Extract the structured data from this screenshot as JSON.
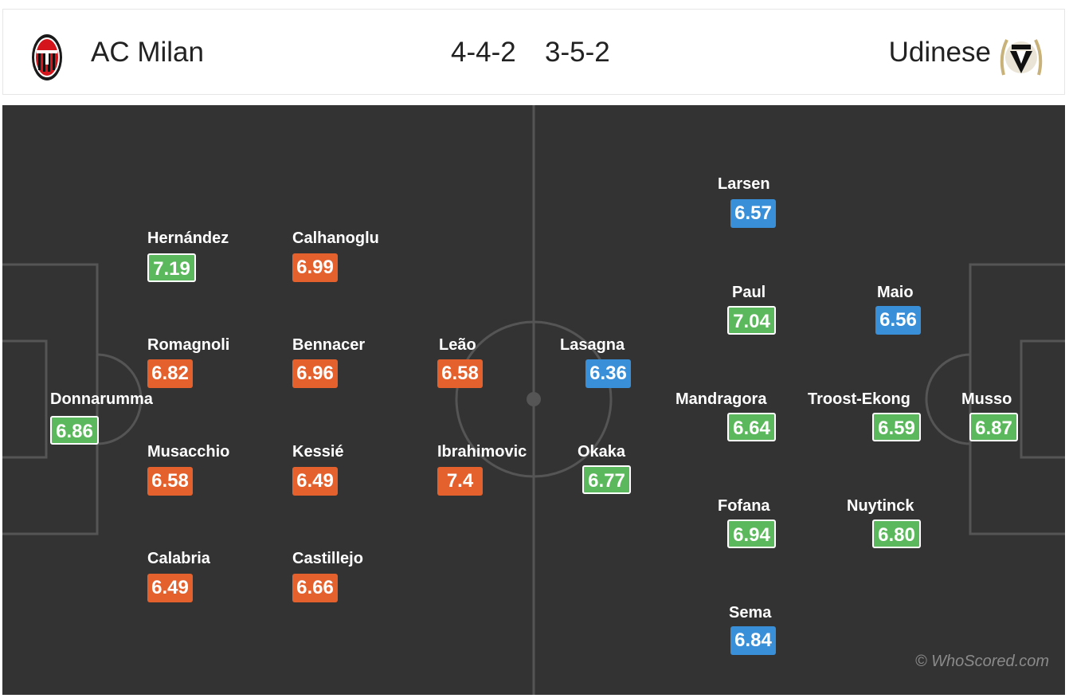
{
  "header": {
    "home_team": "AC Milan",
    "away_team": "Udinese",
    "home_formation": "4-4-2",
    "away_formation": "3-5-2",
    "home_crest_text": "ACM 1899",
    "away_crest_text": "1896"
  },
  "colors": {
    "pitch": "#333333",
    "lines": "#555555",
    "rating_orange": "#e4612e",
    "rating_green": "#5cb85c",
    "rating_blue": "#3a8fd9"
  },
  "home_players": [
    {
      "name": "Donnarumma",
      "rating": "6.86",
      "color": "green"
    },
    {
      "name": "Hernández",
      "rating": "7.19",
      "color": "green"
    },
    {
      "name": "Romagnoli",
      "rating": "6.82",
      "color": "orange"
    },
    {
      "name": "Musacchio",
      "rating": "6.58",
      "color": "orange"
    },
    {
      "name": "Calabria",
      "rating": "6.49",
      "color": "orange"
    },
    {
      "name": "Calhanoglu",
      "rating": "6.99",
      "color": "orange"
    },
    {
      "name": "Bennacer",
      "rating": "6.96",
      "color": "orange"
    },
    {
      "name": "Kessié",
      "rating": "6.49",
      "color": "orange"
    },
    {
      "name": "Castillejo",
      "rating": "6.66",
      "color": "orange"
    },
    {
      "name": "Leão",
      "rating": "6.58",
      "color": "orange"
    },
    {
      "name": "Ibrahimovic",
      "rating": "7.4",
      "color": "orange"
    }
  ],
  "away_players": [
    {
      "name": "Lasagna",
      "rating": "6.36",
      "color": "blue"
    },
    {
      "name": "Okaka",
      "rating": "6.77",
      "color": "green"
    },
    {
      "name": "Larsen",
      "rating": "6.57",
      "color": "blue"
    },
    {
      "name": "Paul",
      "rating": "7.04",
      "color": "green"
    },
    {
      "name": "Mandragora",
      "rating": "6.64",
      "color": "green"
    },
    {
      "name": "Fofana",
      "rating": "6.94",
      "color": "green"
    },
    {
      "name": "Sema",
      "rating": "6.84",
      "color": "blue"
    },
    {
      "name": "Maio",
      "rating": "6.56",
      "color": "blue"
    },
    {
      "name": "Troost-Ekong",
      "rating": "6.59",
      "color": "green"
    },
    {
      "name": "Nuytinck",
      "rating": "6.80",
      "color": "green"
    },
    {
      "name": "Musso",
      "rating": "6.87",
      "color": "green"
    }
  ],
  "watermark": "© WhoScored.com"
}
